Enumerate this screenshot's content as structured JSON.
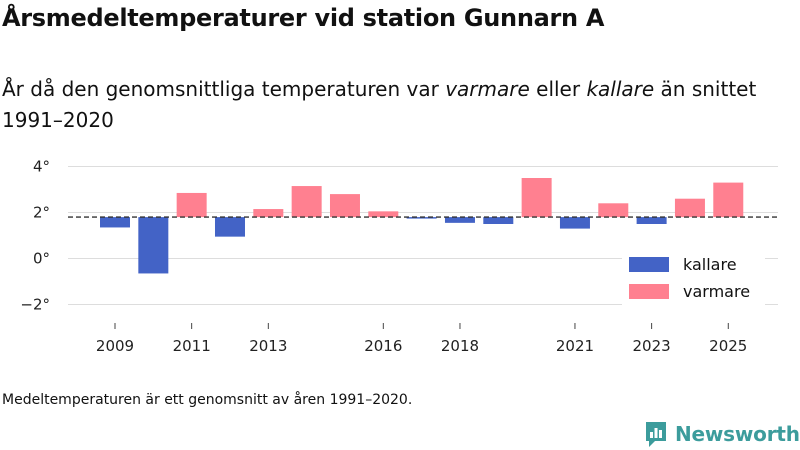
{
  "header": {
    "title": "Årsmedeltemperaturer vid station Gunnarn A",
    "subtitle_part1": "År då den genomsnittliga temperaturen var ",
    "subtitle_warm": "varmare",
    "subtitle_part2": " eller ",
    "subtitle_cold": "kallare",
    "subtitle_part3": " än snittet 1991–2020"
  },
  "footer": {
    "note": "Medeltemperaturen är ett genomsnitt av åren 1991–2020.",
    "brand": "Newsworthy"
  },
  "colors": {
    "warm": "#ff8090",
    "cold": "#4363c6",
    "brand": "#3c9c9c"
  },
  "chart_data": {
    "type": "bar",
    "title": "Årsmedeltemperaturer vid station Gunnarn A",
    "baseline": 1.8,
    "baseline_label": "snittet 1991–2020",
    "ylim": [
      -3,
      4.5
    ],
    "yticks": [
      4,
      2,
      0,
      -2
    ],
    "ytick_labels": [
      "4°",
      "2°",
      "0°",
      "−2°"
    ],
    "xticks": [
      2009,
      2011,
      2013,
      2016,
      2018,
      2021,
      2023,
      2025
    ],
    "categories": [
      2009,
      2010,
      2011,
      2012,
      2013,
      2014,
      2015,
      2016,
      2017,
      2018,
      2019,
      2020,
      2021,
      2022,
      2023,
      2024,
      2025
    ],
    "values": [
      1.35,
      -0.65,
      2.85,
      0.95,
      2.15,
      3.15,
      2.8,
      2.05,
      1.75,
      1.55,
      1.5,
      3.5,
      1.3,
      2.4,
      1.5,
      2.6,
      3.3
    ],
    "legend": [
      {
        "key": "cold",
        "label": "kallare"
      },
      {
        "key": "warm",
        "label": "varmare"
      }
    ]
  }
}
